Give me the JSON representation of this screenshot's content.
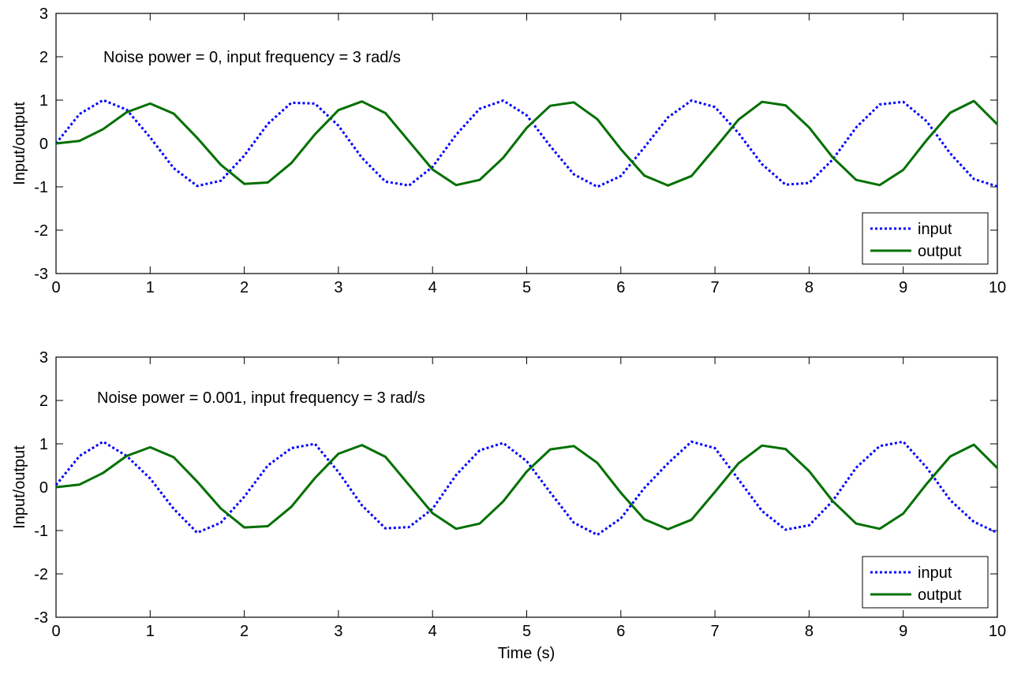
{
  "chart_data": [
    {
      "type": "line",
      "annotation": "Noise power = 0, input frequency = 3 rad/s",
      "xlabel": "",
      "ylabel": "Input/output",
      "xlim": [
        0,
        10
      ],
      "ylim": [
        -3,
        3
      ],
      "xticks": [
        0,
        1,
        2,
        3,
        4,
        5,
        6,
        7,
        8,
        9,
        10
      ],
      "yticks": [
        -3,
        -2,
        -1,
        0,
        1,
        2,
        3
      ],
      "legend_position": "bottom-right",
      "grid": false,
      "x": [
        0.0,
        0.25,
        0.5,
        0.75,
        1.0,
        1.25,
        1.5,
        1.75,
        2.0,
        2.25,
        2.5,
        2.75,
        3.0,
        3.25,
        3.5,
        3.75,
        4.0,
        4.25,
        4.5,
        4.75,
        5.0,
        5.25,
        5.5,
        5.75,
        6.0,
        6.25,
        6.5,
        6.75,
        7.0,
        7.25,
        7.5,
        7.75,
        8.0,
        8.25,
        8.5,
        8.75,
        9.0,
        9.25,
        9.5,
        9.75,
        10.0
      ],
      "series": [
        {
          "name": "input",
          "color": "#0000ff",
          "style": "dotted",
          "values": [
            0.0,
            0.68,
            1.0,
            0.78,
            0.14,
            -0.57,
            -0.98,
            -0.86,
            -0.28,
            0.45,
            0.94,
            0.92,
            0.41,
            -0.33,
            -0.88,
            -0.97,
            -0.54,
            0.2,
            0.8,
            0.99,
            0.65,
            -0.06,
            -0.71,
            -1.0,
            -0.75,
            -0.09,
            0.6,
            0.99,
            0.84,
            0.24,
            -0.48,
            -0.95,
            -0.91,
            -0.37,
            0.37,
            0.9,
            0.96,
            0.51,
            -0.23,
            -0.82,
            -0.99
          ]
        },
        {
          "name": "output",
          "color": "#007000",
          "style": "solid",
          "values": [
            0.0,
            0.06,
            0.33,
            0.72,
            0.92,
            0.69,
            0.13,
            -0.49,
            -0.93,
            -0.9,
            -0.45,
            0.21,
            0.77,
            0.97,
            0.7,
            0.05,
            -0.6,
            -0.96,
            -0.84,
            -0.33,
            0.36,
            0.87,
            0.95,
            0.56,
            -0.13,
            -0.74,
            -0.97,
            -0.75,
            -0.11,
            0.55,
            0.96,
            0.88,
            0.37,
            -0.32,
            -0.84,
            -0.96,
            -0.61,
            0.08,
            0.71,
            0.98,
            0.44
          ]
        }
      ]
    },
    {
      "type": "line",
      "annotation": "Noise power = 0.001, input frequency = 3 rad/s",
      "xlabel": "Time (s)",
      "ylabel": "Input/output",
      "xlim": [
        0,
        10
      ],
      "ylim": [
        -3,
        3
      ],
      "xticks": [
        0,
        1,
        2,
        3,
        4,
        5,
        6,
        7,
        8,
        9,
        10
      ],
      "yticks": [
        -3,
        -2,
        -1,
        0,
        1,
        2,
        3
      ],
      "legend_position": "bottom-right",
      "grid": false,
      "x": [
        0.0,
        0.25,
        0.5,
        0.75,
        1.0,
        1.25,
        1.5,
        1.75,
        2.0,
        2.25,
        2.5,
        2.75,
        3.0,
        3.25,
        3.5,
        3.75,
        4.0,
        4.25,
        4.5,
        4.75,
        5.0,
        5.25,
        5.5,
        5.75,
        6.0,
        6.25,
        6.5,
        6.75,
        7.0,
        7.25,
        7.5,
        7.75,
        8.0,
        8.25,
        8.5,
        8.75,
        9.0,
        9.25,
        9.5,
        9.75,
        10.0
      ],
      "series": [
        {
          "name": "input",
          "color": "#0000ff",
          "style": "dotted",
          "values": [
            0.05,
            0.72,
            1.05,
            0.72,
            0.2,
            -0.5,
            -1.05,
            -0.82,
            -0.22,
            0.5,
            0.9,
            1.0,
            0.35,
            -0.42,
            -0.95,
            -0.92,
            -0.5,
            0.28,
            0.85,
            1.02,
            0.6,
            -0.12,
            -0.82,
            -1.1,
            -0.72,
            -0.02,
            0.55,
            1.05,
            0.9,
            0.18,
            -0.55,
            -0.98,
            -0.88,
            -0.32,
            0.45,
            0.95,
            1.05,
            0.45,
            -0.3,
            -0.8,
            -1.05
          ]
        },
        {
          "name": "output",
          "color": "#007000",
          "style": "solid",
          "values": [
            0.0,
            0.06,
            0.33,
            0.72,
            0.92,
            0.69,
            0.13,
            -0.49,
            -0.93,
            -0.9,
            -0.45,
            0.21,
            0.77,
            0.97,
            0.7,
            0.05,
            -0.6,
            -0.96,
            -0.84,
            -0.33,
            0.36,
            0.87,
            0.95,
            0.56,
            -0.13,
            -0.74,
            -0.97,
            -0.75,
            -0.11,
            0.55,
            0.96,
            0.88,
            0.37,
            -0.32,
            -0.84,
            -0.96,
            -0.61,
            0.08,
            0.71,
            0.98,
            0.44
          ]
        }
      ]
    }
  ]
}
